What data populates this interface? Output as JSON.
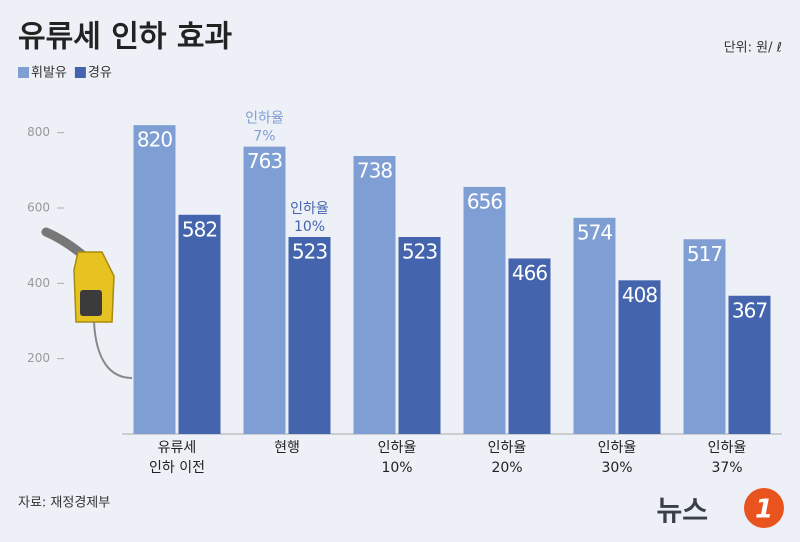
{
  "chart_data": {
    "type": "bar",
    "title": "유류세 인하 효과",
    "unit": "단위: 원/ ℓ",
    "source": "자료: 재정경제부",
    "logo": {
      "text": "뉴스",
      "mark": "1"
    },
    "categories": [
      [
        "유류세",
        "인하 이전"
      ],
      [
        "현행"
      ],
      [
        "인하율",
        "10%"
      ],
      [
        "인하율",
        "20%"
      ],
      [
        "인하율",
        "30%"
      ],
      [
        "인하율",
        "37%"
      ]
    ],
    "series": [
      {
        "name": "휘발유",
        "color": "#7f9fd4",
        "values": [
          820,
          763,
          738,
          656,
          574,
          517
        ]
      },
      {
        "name": "경유",
        "color": "#4465ae",
        "values": [
          582,
          523,
          523,
          466,
          408,
          367
        ]
      }
    ],
    "annotations": [
      {
        "lines": [
          "인하율",
          "7%"
        ],
        "series": 0,
        "category": 1
      },
      {
        "lines": [
          "인하율",
          "10%"
        ],
        "series": 1,
        "category": 1
      }
    ],
    "ylim": [
      0,
      900
    ],
    "yticks": [
      200,
      400,
      600,
      800
    ]
  }
}
